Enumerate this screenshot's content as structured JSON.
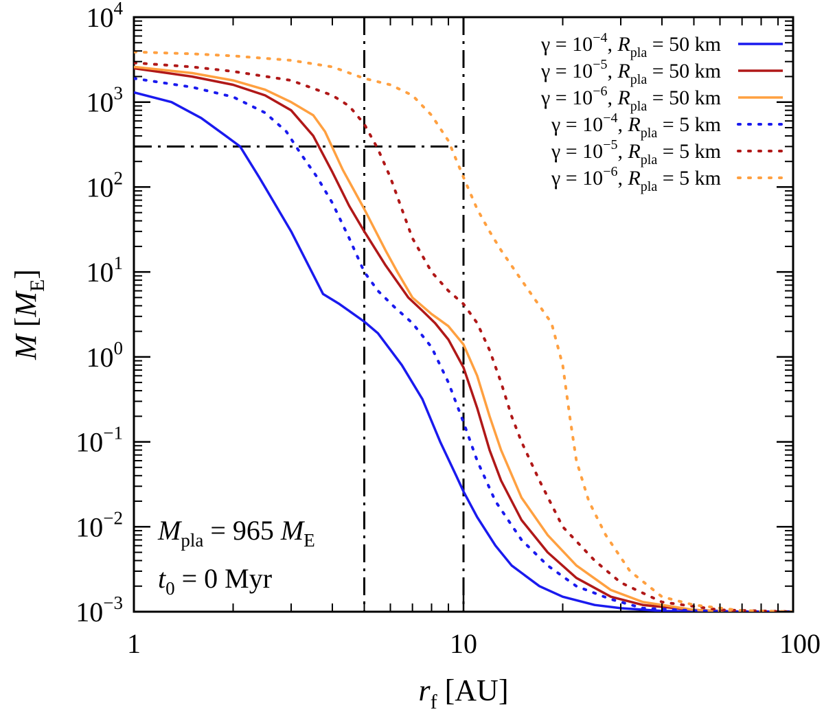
{
  "chart_data": {
    "type": "line",
    "xscale": "log",
    "yscale": "log",
    "xlim": [
      1,
      100
    ],
    "ylim": [
      0.001,
      10000
    ],
    "xlabel": {
      "main": "r",
      "sub": "f",
      "unit": " [AU]"
    },
    "ylabel": {
      "main": "M",
      "bracket_open": " [",
      "unit_main": "M",
      "unit_sub": "E",
      "bracket_close": "]"
    },
    "x_ticks": [
      {
        "value": 1,
        "label": "1"
      },
      {
        "value": 10,
        "label": "10"
      },
      {
        "value": 100,
        "label": "100"
      }
    ],
    "y_ticks": [
      {
        "value": 0.001,
        "base": "10",
        "exp": "−3"
      },
      {
        "value": 0.01,
        "base": "10",
        "exp": "−2"
      },
      {
        "value": 0.1,
        "base": "10",
        "exp": "−1"
      },
      {
        "value": 1,
        "base": "10",
        "exp": "0"
      },
      {
        "value": 10,
        "base": "10",
        "exp": "1"
      },
      {
        "value": 100,
        "base": "10",
        "exp": "2"
      },
      {
        "value": 1000,
        "base": "10",
        "exp": "3"
      },
      {
        "value": 10000,
        "base": "10",
        "exp": "4"
      }
    ],
    "reference_lines": [
      {
        "orientation": "vertical",
        "value": 5,
        "style": "dash-dot"
      },
      {
        "orientation": "vertical",
        "value": 10,
        "style": "dash-dot"
      },
      {
        "orientation": "horizontal",
        "value": 300,
        "x_from": 1,
        "x_to": 10,
        "style": "dash-dot"
      }
    ],
    "series": [
      {
        "name": "γ = 10^−4, R_pla = 50 km",
        "gamma_exp": "−4",
        "rpla": "50 km",
        "color": "#1a1aee",
        "style": "solid",
        "points": [
          [
            1,
            1300
          ],
          [
            1.3,
            1000
          ],
          [
            1.6,
            650
          ],
          [
            1.9,
            400
          ],
          [
            2.1,
            300
          ],
          [
            2.4,
            130
          ],
          [
            3.0,
            30
          ],
          [
            3.75,
            5.5
          ],
          [
            4.2,
            4.2
          ],
          [
            5.0,
            2.6
          ],
          [
            5.5,
            1.9
          ],
          [
            6.5,
            0.8
          ],
          [
            7.5,
            0.32
          ],
          [
            8.5,
            0.1
          ],
          [
            9.5,
            0.04
          ],
          [
            10,
            0.026
          ],
          [
            11,
            0.013
          ],
          [
            12.5,
            0.006
          ],
          [
            14,
            0.0035
          ],
          [
            17,
            0.002
          ],
          [
            20,
            0.0015
          ],
          [
            25,
            0.0012
          ],
          [
            30,
            0.0011
          ],
          [
            40,
            0.00102
          ],
          [
            60,
            0.001
          ],
          [
            100,
            0.001
          ]
        ]
      },
      {
        "name": "γ = 10^−5, R_pla = 50 km",
        "gamma_exp": "−5",
        "rpla": "50 km",
        "color": "#b01818",
        "style": "solid",
        "points": [
          [
            1,
            2500
          ],
          [
            1.5,
            2000
          ],
          [
            2,
            1600
          ],
          [
            2.5,
            1200
          ],
          [
            3,
            800
          ],
          [
            3.5,
            400
          ],
          [
            4,
            150
          ],
          [
            4.5,
            60
          ],
          [
            5,
            30
          ],
          [
            5.8,
            12
          ],
          [
            6.8,
            5
          ],
          [
            7.5,
            3.5
          ],
          [
            8.2,
            2.5
          ],
          [
            9,
            1.6
          ],
          [
            10,
            0.75
          ],
          [
            11,
            0.25
          ],
          [
            12,
            0.08
          ],
          [
            13,
            0.035
          ],
          [
            15,
            0.012
          ],
          [
            18,
            0.005
          ],
          [
            22,
            0.0025
          ],
          [
            28,
            0.0015
          ],
          [
            35,
            0.0012
          ],
          [
            50,
            0.00105
          ],
          [
            70,
            0.001
          ],
          [
            100,
            0.001
          ]
        ]
      },
      {
        "name": "γ = 10^−6, R_pla = 50 km",
        "gamma_exp": "−6",
        "rpla": "50 km",
        "color": "#ffa040",
        "style": "solid",
        "points": [
          [
            1,
            2600
          ],
          [
            1.5,
            2200
          ],
          [
            2,
            1800
          ],
          [
            2.5,
            1400
          ],
          [
            3,
            1000
          ],
          [
            3.5,
            700
          ],
          [
            3.8,
            450
          ],
          [
            4.3,
            160
          ],
          [
            5,
            55
          ],
          [
            5.8,
            18
          ],
          [
            6.3,
            10
          ],
          [
            7,
            5
          ],
          [
            8,
            3.2
          ],
          [
            9,
            2.3
          ],
          [
            10,
            1.4
          ],
          [
            11,
            0.6
          ],
          [
            12,
            0.2
          ],
          [
            13,
            0.08
          ],
          [
            15,
            0.022
          ],
          [
            18,
            0.008
          ],
          [
            22,
            0.0035
          ],
          [
            28,
            0.0018
          ],
          [
            35,
            0.0013
          ],
          [
            50,
            0.00105
          ],
          [
            70,
            0.001
          ],
          [
            100,
            0.001
          ]
        ]
      },
      {
        "name": "γ = 10^−4, R_pla = 5 km",
        "gamma_exp": "−4",
        "rpla": "  5 km",
        "color": "#1a1aee",
        "style": "dotted",
        "points": [
          [
            1,
            1900
          ],
          [
            1.5,
            1500
          ],
          [
            2,
            1150
          ],
          [
            2.5,
            750
          ],
          [
            2.9,
            450
          ],
          [
            3.2,
            250
          ],
          [
            3.6,
            130
          ],
          [
            4,
            65
          ],
          [
            4.5,
            25
          ],
          [
            5,
            10
          ],
          [
            5.5,
            6
          ],
          [
            6.2,
            3.8
          ],
          [
            7,
            2.5
          ],
          [
            8,
            1.3
          ],
          [
            9,
            0.5
          ],
          [
            10,
            0.17
          ],
          [
            11,
            0.06
          ],
          [
            12.5,
            0.02
          ],
          [
            15,
            0.007
          ],
          [
            18,
            0.0035
          ],
          [
            22,
            0.002
          ],
          [
            28,
            0.0014
          ],
          [
            35,
            0.0011
          ],
          [
            50,
            0.00103
          ],
          [
            70,
            0.001
          ],
          [
            100,
            0.001
          ]
        ]
      },
      {
        "name": "γ = 10^−5, R_pla = 5 km",
        "gamma_exp": "−5",
        "rpla": "  5 km",
        "color": "#b01818",
        "style": "dotted",
        "points": [
          [
            1,
            2900
          ],
          [
            1.5,
            2600
          ],
          [
            2,
            2300
          ],
          [
            3,
            1800
          ],
          [
            4,
            1200
          ],
          [
            4.5,
            900
          ],
          [
            5,
            550
          ],
          [
            5.5,
            280
          ],
          [
            6,
            130
          ],
          [
            6.5,
            55
          ],
          [
            7,
            25
          ],
          [
            8,
            10
          ],
          [
            9,
            6
          ],
          [
            10,
            4.2
          ],
          [
            11,
            2.5
          ],
          [
            12,
            1.2
          ],
          [
            13,
            0.5
          ],
          [
            14,
            0.2
          ],
          [
            15,
            0.1
          ],
          [
            17,
            0.035
          ],
          [
            20,
            0.01
          ],
          [
            25,
            0.004
          ],
          [
            30,
            0.0022
          ],
          [
            40,
            0.0013
          ],
          [
            60,
            0.00105
          ],
          [
            100,
            0.001
          ]
        ]
      },
      {
        "name": "γ = 10^−6, R_pla = 5 km",
        "gamma_exp": "−6",
        "rpla": "  5 km",
        "color": "#ffa040",
        "style": "dotted",
        "points": [
          [
            1,
            3900
          ],
          [
            1.5,
            3700
          ],
          [
            2,
            3500
          ],
          [
            3,
            3100
          ],
          [
            4,
            2600
          ],
          [
            5,
            1900
          ],
          [
            6,
            1600
          ],
          [
            7,
            1200
          ],
          [
            8,
            700
          ],
          [
            9,
            350
          ],
          [
            10,
            130
          ],
          [
            11,
            55
          ],
          [
            12,
            30
          ],
          [
            13,
            18
          ],
          [
            15,
            8
          ],
          [
            17,
            4
          ],
          [
            18.5,
            2.5
          ],
          [
            20,
            0.8
          ],
          [
            21,
            0.2
          ],
          [
            22,
            0.06
          ],
          [
            24,
            0.02
          ],
          [
            27,
            0.008
          ],
          [
            32,
            0.003
          ],
          [
            40,
            0.0015
          ],
          [
            50,
            0.0012
          ],
          [
            70,
            0.00103
          ],
          [
            100,
            0.001
          ]
        ]
      }
    ],
    "annotations": [
      {
        "main": "M",
        "sub": "pla",
        "rest": " = 965 ",
        "unit_main": "M",
        "unit_sub": "E"
      },
      {
        "main": "t",
        "sub": "0",
        "rest": " = 0 Myr"
      }
    ]
  }
}
